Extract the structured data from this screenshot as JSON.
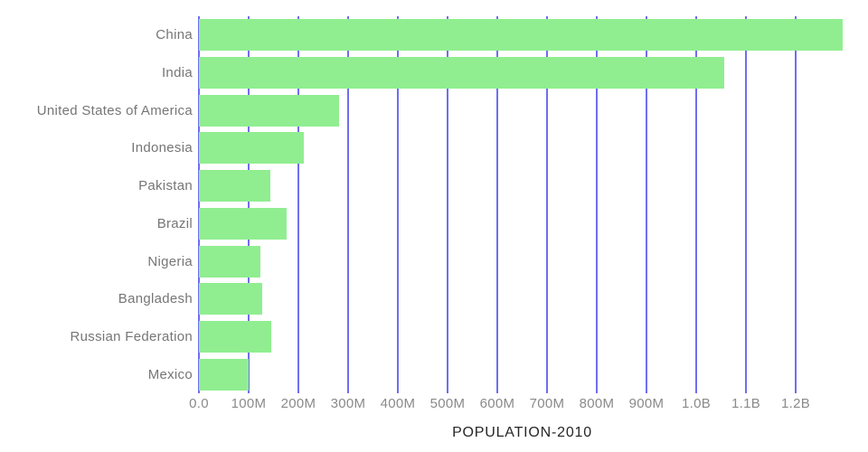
{
  "chart_data": {
    "type": "bar",
    "orientation": "horizontal",
    "title": "POPULATION-2010",
    "title_position": "bottom-center",
    "legend": "none",
    "grid": true,
    "categories": [
      "China",
      "India",
      "United States of America",
      "Indonesia",
      "Pakistan",
      "Brazil",
      "Nigeria",
      "Bangladesh",
      "Russian Federation",
      "Mexico"
    ],
    "values": [
      1295000000,
      1057000000,
      282000000,
      211000000,
      144000000,
      176000000,
      123000000,
      128000000,
      146000000,
      100000000
    ],
    "x_axis": {
      "min": 0,
      "max": 1300000000,
      "ticks": [
        {
          "value": 0,
          "label": "0.0"
        },
        {
          "value": 100000000,
          "label": "100M"
        },
        {
          "value": 200000000,
          "label": "200M"
        },
        {
          "value": 300000000,
          "label": "300M"
        },
        {
          "value": 400000000,
          "label": "400M"
        },
        {
          "value": 500000000,
          "label": "500M"
        },
        {
          "value": 600000000,
          "label": "600M"
        },
        {
          "value": 700000000,
          "label": "700M"
        },
        {
          "value": 800000000,
          "label": "800M"
        },
        {
          "value": 900000000,
          "label": "900M"
        },
        {
          "value": 1000000000,
          "label": "1.0B"
        },
        {
          "value": 1100000000,
          "label": "1.1B"
        },
        {
          "value": 1200000000,
          "label": "1.2B"
        }
      ]
    },
    "colors": {
      "bar": "#90EE90",
      "gridline": "#6E6EF2",
      "category_label": "#767676",
      "tick_label": "#8A8A8A",
      "title": "#262626",
      "background": "#FFFFFF"
    }
  }
}
